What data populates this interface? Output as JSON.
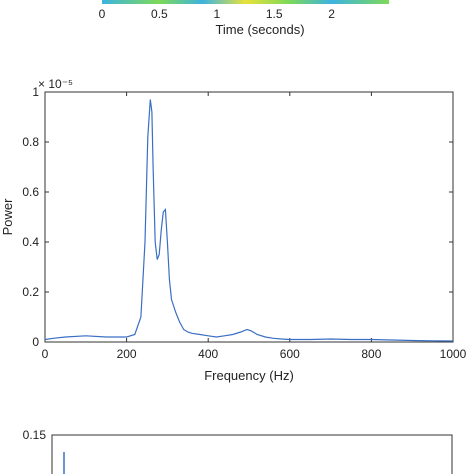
{
  "chart_data": [
    {
      "type": "heatmap",
      "xlabel": "Time (seconds)",
      "x_ticks": [
        "0",
        "0.5",
        "1",
        "1.5",
        "2"
      ],
      "x_tick_values": [
        0,
        0.5,
        1,
        1.5,
        2
      ],
      "xlim": [
        0,
        2.5
      ],
      "colors": {
        "low": "#3db3e0",
        "mid": "#7ed957",
        "high": "#e8e23a"
      }
    },
    {
      "type": "line",
      "xlabel": "Frequency (Hz)",
      "ylabel": "Power",
      "y_exponent": "× 10⁻⁵",
      "xlim": [
        0,
        1000
      ],
      "ylim": [
        0,
        1
      ],
      "x_ticks": [
        "0",
        "200",
        "400",
        "600",
        "800",
        "1000"
      ],
      "x_tick_values": [
        0,
        200,
        400,
        600,
        800,
        1000
      ],
      "y_ticks": [
        "0",
        "0.2",
        "0.4",
        "0.6",
        "0.8",
        "1"
      ],
      "y_tick_values": [
        0,
        0.2,
        0.4,
        0.6,
        0.8,
        1
      ],
      "grid": false,
      "line_color": "#3a6fc4",
      "series": [
        {
          "x": [
            0,
            20,
            50,
            100,
            150,
            200,
            220,
            235,
            245,
            252,
            258,
            262,
            265,
            270,
            275,
            280,
            285,
            290,
            295,
            300,
            305,
            310,
            320,
            330,
            340,
            350,
            360,
            380,
            400,
            420,
            440,
            460,
            480,
            495,
            505,
            520,
            540,
            560,
            580,
            600,
            650,
            700,
            750,
            800,
            850,
            900,
            950,
            1000
          ],
          "y": [
            0.01,
            0.015,
            0.02,
            0.025,
            0.02,
            0.02,
            0.03,
            0.1,
            0.4,
            0.82,
            0.97,
            0.92,
            0.7,
            0.4,
            0.33,
            0.35,
            0.45,
            0.52,
            0.53,
            0.4,
            0.25,
            0.17,
            0.12,
            0.08,
            0.05,
            0.04,
            0.035,
            0.03,
            0.025,
            0.02,
            0.025,
            0.03,
            0.04,
            0.05,
            0.045,
            0.03,
            0.02,
            0.015,
            0.012,
            0.01,
            0.01,
            0.012,
            0.01,
            0.01,
            0.008,
            0.006,
            0.005,
            0.004
          ]
        }
      ]
    },
    {
      "type": "line",
      "y_ticks": [
        "0.15"
      ],
      "y_tick_values": [
        0.15
      ],
      "line_color": "#3a6fc4",
      "series": [
        {
          "x": [
            0.05
          ],
          "y": [
            0.15
          ]
        }
      ]
    }
  ]
}
